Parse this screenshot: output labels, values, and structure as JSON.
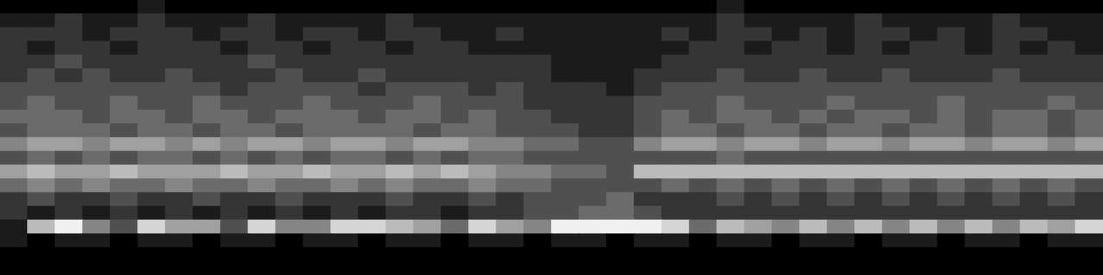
{
  "chart_data": {
    "type": "heatmap",
    "zlim": [
      0,
      9
    ],
    "grid": false,
    "tick_labels": false,
    "cells": [
      [
        0,
        0,
        0,
        0,
        0,
        1,
        0,
        0,
        0,
        0,
        0,
        0,
        0,
        0,
        0,
        0,
        0,
        0,
        0,
        0,
        0,
        0,
        0,
        0,
        0,
        0,
        1,
        0,
        0,
        0,
        0,
        0,
        0,
        0,
        0,
        0,
        0,
        0,
        0,
        0
      ],
      [
        1,
        1,
        2,
        1,
        1,
        2,
        1,
        1,
        1,
        2,
        1,
        1,
        1,
        1,
        2,
        1,
        1,
        1,
        1,
        1,
        1,
        1,
        1,
        1,
        1,
        1,
        2,
        1,
        1,
        1,
        1,
        2,
        1,
        1,
        1,
        1,
        2,
        1,
        1,
        1
      ],
      [
        2,
        2,
        2,
        1,
        2,
        2,
        2,
        1,
        2,
        2,
        1,
        2,
        2,
        1,
        2,
        2,
        1,
        1,
        2,
        1,
        1,
        1,
        1,
        1,
        2,
        1,
        2,
        2,
        1,
        2,
        1,
        2,
        2,
        1,
        2,
        1,
        2,
        2,
        1,
        1
      ],
      [
        2,
        1,
        2,
        2,
        1,
        2,
        2,
        2,
        1,
        2,
        2,
        1,
        2,
        2,
        1,
        2,
        2,
        1,
        1,
        1,
        1,
        1,
        1,
        1,
        1,
        2,
        2,
        1,
        2,
        2,
        1,
        2,
        1,
        2,
        2,
        1,
        2,
        1,
        2,
        1
      ],
      [
        2,
        2,
        3,
        2,
        2,
        2,
        2,
        2,
        2,
        3,
        2,
        2,
        2,
        2,
        2,
        2,
        2,
        2,
        2,
        2,
        1,
        1,
        1,
        1,
        2,
        2,
        2,
        2,
        2,
        2,
        2,
        2,
        2,
        2,
        2,
        2,
        2,
        2,
        2,
        2
      ],
      [
        2,
        3,
        2,
        3,
        2,
        2,
        3,
        2,
        2,
        2,
        3,
        2,
        2,
        3,
        2,
        2,
        2,
        2,
        2,
        2,
        1,
        1,
        1,
        2,
        2,
        2,
        3,
        2,
        2,
        3,
        2,
        2,
        3,
        2,
        2,
        2,
        3,
        2,
        2,
        2
      ],
      [
        3,
        3,
        3,
        3,
        3,
        3,
        3,
        3,
        2,
        3,
        3,
        3,
        3,
        2,
        3,
        3,
        3,
        2,
        3,
        2,
        2,
        2,
        1,
        2,
        3,
        3,
        3,
        3,
        3,
        3,
        3,
        3,
        3,
        3,
        3,
        3,
        3,
        3,
        3,
        3
      ],
      [
        3,
        4,
        3,
        3,
        4,
        3,
        3,
        4,
        3,
        3,
        3,
        4,
        3,
        3,
        3,
        4,
        3,
        3,
        3,
        2,
        2,
        2,
        2,
        3,
        3,
        3,
        4,
        3,
        3,
        3,
        4,
        3,
        3,
        3,
        4,
        3,
        3,
        3,
        4,
        3
      ],
      [
        4,
        4,
        4,
        3,
        4,
        4,
        3,
        4,
        4,
        3,
        4,
        4,
        4,
        3,
        4,
        4,
        3,
        4,
        3,
        3,
        2,
        2,
        2,
        3,
        4,
        3,
        4,
        4,
        3,
        4,
        3,
        4,
        4,
        3,
        4,
        3,
        4,
        4,
        3,
        4
      ],
      [
        3,
        4,
        4,
        4,
        3,
        4,
        4,
        3,
        4,
        4,
        3,
        4,
        4,
        4,
        4,
        3,
        4,
        4,
        3,
        3,
        3,
        2,
        2,
        3,
        4,
        4,
        3,
        4,
        4,
        3,
        4,
        4,
        3,
        4,
        4,
        3,
        4,
        4,
        3,
        4
      ],
      [
        5,
        6,
        6,
        5,
        6,
        6,
        5,
        6,
        5,
        6,
        6,
        5,
        6,
        6,
        5,
        6,
        6,
        5,
        5,
        4,
        4,
        3,
        3,
        5,
        6,
        6,
        5,
        6,
        6,
        5,
        6,
        6,
        5,
        6,
        6,
        5,
        6,
        6,
        5,
        6
      ],
      [
        3,
        4,
        3,
        4,
        3,
        4,
        4,
        3,
        4,
        3,
        4,
        3,
        4,
        4,
        3,
        4,
        3,
        4,
        4,
        3,
        3,
        3,
        3,
        3,
        3,
        3,
        4,
        3,
        3,
        3,
        3,
        3,
        3,
        3,
        3,
        3,
        3,
        3,
        3,
        3
      ],
      [
        6,
        7,
        6,
        6,
        7,
        6,
        6,
        6,
        7,
        6,
        6,
        7,
        6,
        6,
        7,
        6,
        7,
        6,
        5,
        5,
        4,
        4,
        3,
        7,
        7,
        7,
        7,
        7,
        7,
        7,
        7,
        7,
        7,
        7,
        7,
        7,
        7,
        7,
        7,
        7
      ],
      [
        4,
        5,
        4,
        5,
        4,
        4,
        5,
        4,
        4,
        5,
        4,
        4,
        5,
        4,
        5,
        4,
        4,
        5,
        4,
        4,
        3,
        3,
        3,
        3,
        4,
        3,
        4,
        3,
        4,
        3,
        4,
        3,
        4,
        3,
        4,
        3,
        4,
        3,
        4,
        3
      ],
      [
        2,
        3,
        2,
        2,
        3,
        2,
        2,
        3,
        2,
        2,
        3,
        2,
        2,
        2,
        3,
        2,
        2,
        3,
        2,
        3,
        3,
        3,
        4,
        2,
        2,
        2,
        3,
        2,
        3,
        2,
        3,
        2,
        3,
        2,
        3,
        2,
        3,
        2,
        3,
        2
      ],
      [
        2,
        1,
        2,
        1,
        2,
        1,
        2,
        1,
        2,
        1,
        2,
        1,
        2,
        1,
        2,
        2,
        1,
        2,
        2,
        3,
        3,
        4,
        4,
        3,
        2,
        2,
        2,
        2,
        2,
        2,
        2,
        2,
        2,
        2,
        2,
        2,
        2,
        2,
        2,
        2
      ],
      [
        1,
        7,
        9,
        5,
        3,
        8,
        6,
        6,
        3,
        8,
        5,
        5,
        8,
        8,
        7,
        6,
        4,
        8,
        6,
        5,
        9,
        9,
        9,
        9,
        8,
        4,
        7,
        6,
        5,
        7,
        5,
        7,
        5,
        7,
        5,
        7,
        5,
        7,
        6,
        8
      ],
      [
        1,
        0,
        1,
        1,
        0,
        1,
        1,
        0,
        1,
        1,
        0,
        1,
        1,
        0,
        1,
        1,
        0,
        1,
        1,
        0,
        1,
        1,
        0,
        1,
        1,
        0,
        1,
        1,
        0,
        1,
        1,
        0,
        1,
        1,
        0,
        1,
        1,
        0,
        1,
        1
      ],
      [
        0,
        0,
        0,
        0,
        0,
        0,
        0,
        0,
        0,
        0,
        0,
        0,
        0,
        0,
        0,
        0,
        0,
        0,
        0,
        0,
        0,
        0,
        0,
        0,
        0,
        0,
        0,
        0,
        0,
        0,
        0,
        0,
        0,
        0,
        0,
        0,
        0,
        0,
        0,
        0
      ],
      [
        0,
        0,
        0,
        0,
        0,
        0,
        0,
        0,
        0,
        0,
        0,
        0,
        0,
        0,
        0,
        0,
        0,
        0,
        0,
        0,
        0,
        0,
        0,
        0,
        0,
        0,
        0,
        0,
        0,
        0,
        0,
        0,
        0,
        0,
        0,
        0,
        0,
        0,
        0,
        0
      ]
    ]
  }
}
